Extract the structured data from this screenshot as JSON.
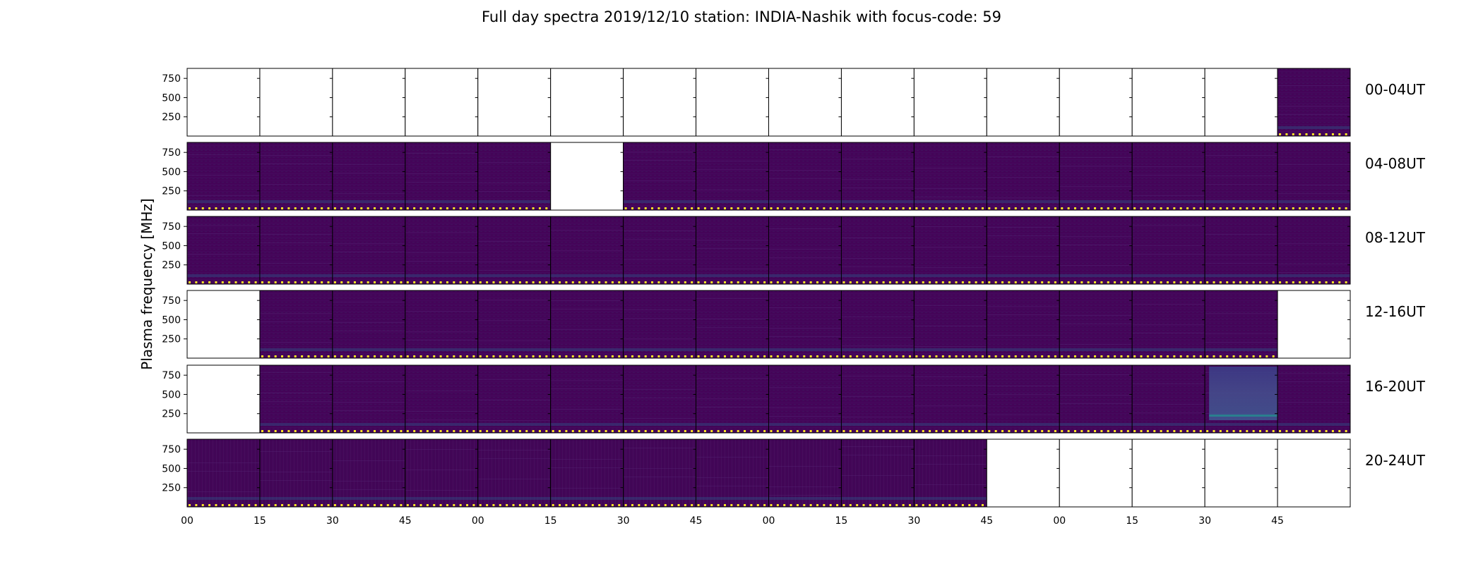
{
  "chart_data": {
    "type": "heatmap",
    "title": "Full day spectra 2019/12/10 station: INDIA-Nashik with focus-code: 59",
    "ylabel": "Plasma frequency [MHz]",
    "yticks": [
      250,
      500,
      750
    ],
    "ylim": [
      0,
      880
    ],
    "xticks": [
      "00",
      "15",
      "30",
      "45",
      "00",
      "15",
      "30",
      "45",
      "00",
      "15",
      "30",
      "45",
      "00",
      "15",
      "30",
      "45"
    ],
    "panels_per_row": 16,
    "colormap": [
      "#440154",
      "#3b528b",
      "#21918c",
      "#5ec962",
      "#fde725"
    ],
    "background_color": "#44065a",
    "rows": [
      {
        "label": "00-04UT",
        "filled": [
          0,
          0,
          0,
          0,
          0,
          0,
          0,
          0,
          0,
          0,
          0,
          0,
          0,
          0,
          0,
          1
        ]
      },
      {
        "label": "04-08UT",
        "filled": [
          1,
          1,
          1,
          1,
          1,
          0,
          1,
          1,
          1,
          1,
          1,
          1,
          1,
          1,
          1,
          1
        ]
      },
      {
        "label": "08-12UT",
        "filled": [
          1,
          1,
          1,
          1,
          1,
          1,
          1,
          1,
          1,
          1,
          1,
          1,
          1,
          1,
          1,
          1
        ]
      },
      {
        "label": "12-16UT",
        "filled": [
          0,
          1,
          1,
          1,
          1,
          1,
          1,
          1,
          1,
          1,
          1,
          1,
          1,
          1,
          1,
          0
        ]
      },
      {
        "label": "16-20UT",
        "filled": [
          0,
          1,
          1,
          1,
          1,
          1,
          1,
          1,
          1,
          1,
          1,
          1,
          1,
          1,
          2,
          1
        ]
      },
      {
        "label": "20-24UT",
        "filled": [
          1,
          1,
          1,
          1,
          1,
          1,
          1,
          1,
          1,
          1,
          1,
          0,
          0,
          0,
          0,
          0
        ]
      }
    ]
  }
}
